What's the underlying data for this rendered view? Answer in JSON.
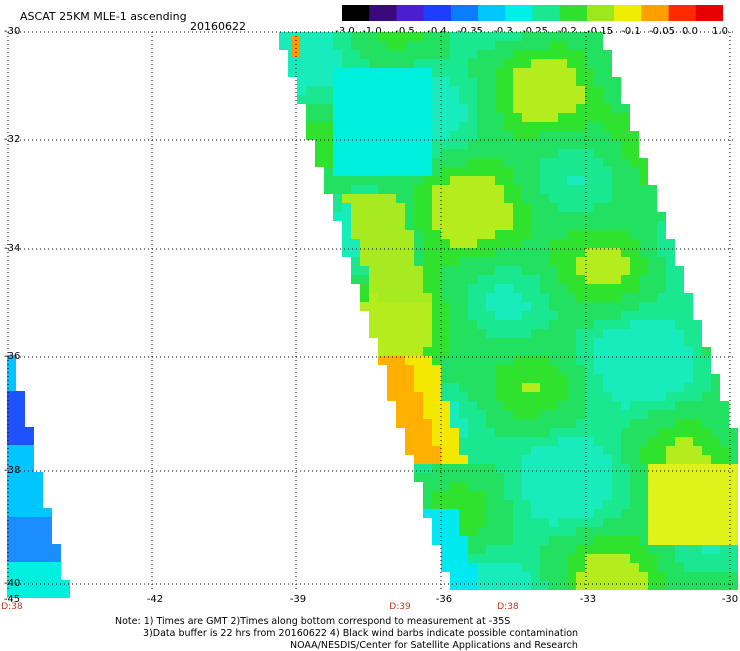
{
  "header": {
    "title": "ASCAT 25KM MLE-1 ascending",
    "date": "20160622"
  },
  "colorbar": {
    "labels": [
      "-3.0",
      "-1.0",
      "-0.5",
      "-0.4",
      "-0.35",
      "-0.3",
      "-0.25",
      "-0.2",
      "-0.15",
      "-0.1",
      "-0.05",
      "0.0",
      "1.0"
    ],
    "colors": [
      "#000000",
      "#3a0a7a",
      "#4b1fd0",
      "#1d3dff",
      "#0a7dff",
      "#00c8ff",
      "#00f0e8",
      "#19e890",
      "#2fe030",
      "#9ce81c",
      "#f0ee00",
      "#ffa000",
      "#ff2a00",
      "#e80000"
    ]
  },
  "map": {
    "lat_labels": [
      "-30",
      "-32",
      "-34",
      "-36",
      "-38",
      "-40"
    ],
    "lon_labels": [
      "-45",
      "-42",
      "-39",
      "-36",
      "-33",
      "-30"
    ],
    "time_labels": [
      "D:38",
      "D:39",
      "D:38"
    ]
  },
  "notes": {
    "line1": "Note: 1) Times are GMT 2)Times along bottom correspond to measurement at -35S",
    "line2": "3)Data buffer is 22 hrs from 20160622 4) Black wind barbs indicate possible contamination",
    "line3": "NOAA/NESDIS/Center for Satellite Applications and Research"
  }
}
